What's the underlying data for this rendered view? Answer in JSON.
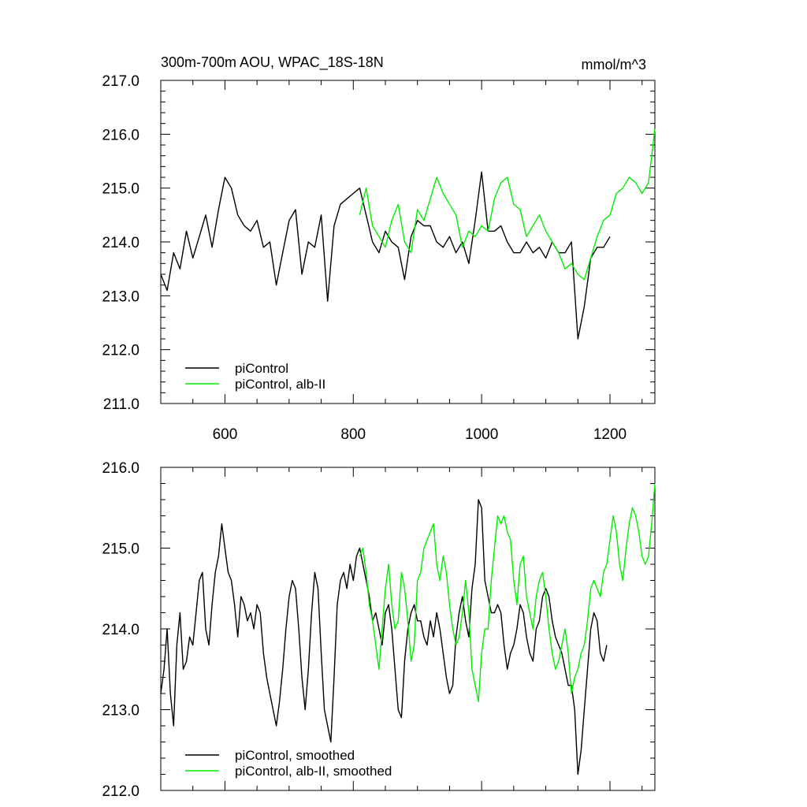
{
  "figure": {
    "title": "300m-700m AOU, WPAC_18S-18N",
    "units": "mmol/m^3"
  },
  "chart_data": [
    {
      "type": "line",
      "title": "300m-700m AOU, WPAC_18S-18N",
      "units": "mmol/m^3",
      "xlim": [
        500,
        1270
      ],
      "ylim": [
        211.0,
        217.0
      ],
      "xticks": [
        600,
        800,
        1000,
        1200
      ],
      "xtick_labels": [
        "600",
        "800",
        "1000",
        "1200"
      ],
      "yticks": [
        211.0,
        212.0,
        213.0,
        214.0,
        215.0,
        216.0,
        217.0
      ],
      "ytick_labels": [
        "211.0",
        "212.0",
        "213.0",
        "214.0",
        "215.0",
        "216.0",
        "217.0"
      ],
      "legend_position": "bottom-left",
      "series": [
        {
          "name": "piControl",
          "color": "#000000",
          "x": [
            500,
            510,
            520,
            530,
            540,
            550,
            560,
            570,
            580,
            590,
            600,
            610,
            620,
            630,
            640,
            650,
            660,
            670,
            680,
            690,
            700,
            710,
            720,
            730,
            740,
            750,
            760,
            770,
            780,
            790,
            800,
            810,
            820,
            830,
            840,
            850,
            860,
            870,
            880,
            890,
            900,
            910,
            920,
            930,
            940,
            950,
            960,
            970,
            980,
            990,
            1000,
            1010,
            1020,
            1030,
            1040,
            1050,
            1060,
            1070,
            1080,
            1090,
            1100,
            1110,
            1120,
            1130,
            1140,
            1150,
            1160,
            1170,
            1180,
            1190,
            1200
          ],
          "y": [
            213.4,
            213.1,
            213.8,
            213.5,
            214.2,
            213.7,
            214.1,
            214.5,
            213.9,
            214.6,
            215.2,
            215.0,
            214.5,
            214.3,
            214.2,
            214.4,
            213.9,
            214.0,
            213.2,
            213.8,
            214.4,
            214.6,
            213.4,
            214.0,
            213.9,
            214.5,
            212.9,
            214.3,
            214.7,
            214.8,
            214.9,
            215.0,
            214.5,
            214.0,
            213.8,
            214.2,
            214.0,
            213.9,
            213.3,
            214.1,
            214.4,
            214.3,
            214.3,
            214.0,
            213.9,
            214.1,
            213.8,
            214.0,
            213.6,
            214.4,
            215.3,
            214.2,
            214.2,
            214.3,
            214.0,
            213.8,
            213.8,
            214.0,
            213.8,
            213.9,
            213.7,
            214.0,
            213.8,
            213.8,
            214.0,
            212.2,
            212.8,
            213.7,
            213.9,
            213.9,
            214.1
          ]
        },
        {
          "name": "piControl, alb-II",
          "color": "#00ee00",
          "x": [
            810,
            820,
            830,
            840,
            850,
            860,
            870,
            880,
            890,
            900,
            910,
            920,
            930,
            940,
            950,
            960,
            970,
            980,
            990,
            1000,
            1010,
            1020,
            1030,
            1040,
            1050,
            1060,
            1070,
            1080,
            1090,
            1100,
            1110,
            1120,
            1130,
            1140,
            1150,
            1160,
            1170,
            1180,
            1190,
            1200,
            1210,
            1220,
            1230,
            1240,
            1250,
            1260,
            1270
          ],
          "y": [
            214.5,
            215.0,
            214.3,
            214.1,
            213.9,
            214.4,
            214.7,
            214.0,
            213.8,
            214.6,
            214.4,
            214.8,
            215.2,
            214.9,
            214.7,
            214.5,
            213.9,
            214.2,
            214.1,
            214.3,
            214.2,
            214.8,
            215.1,
            215.2,
            214.7,
            214.6,
            214.1,
            214.3,
            214.5,
            214.2,
            214.0,
            213.8,
            213.5,
            213.6,
            213.4,
            213.3,
            213.7,
            214.1,
            214.4,
            214.5,
            214.9,
            215.0,
            215.2,
            215.1,
            214.9,
            215.1,
            216.1
          ]
        }
      ]
    },
    {
      "type": "line",
      "xlim": [
        500,
        1270
      ],
      "ylim": [
        212.0,
        216.0
      ],
      "xticks": [
        600,
        800,
        1000,
        1200
      ],
      "xtick_labels": [],
      "yticks": [
        212.0,
        213.0,
        214.0,
        215.0,
        216.0
      ],
      "ytick_labels": [
        "212.0",
        "213.0",
        "214.0",
        "215.0",
        "216.0"
      ],
      "legend_position": "bottom-left",
      "series": [
        {
          "name": "piControl, smoothed",
          "color": "#000000",
          "x": [
            500,
            505,
            510,
            515,
            520,
            525,
            530,
            535,
            540,
            545,
            550,
            555,
            560,
            565,
            570,
            575,
            580,
            585,
            590,
            595,
            600,
            605,
            610,
            615,
            620,
            625,
            630,
            635,
            640,
            645,
            650,
            655,
            660,
            665,
            670,
            675,
            680,
            685,
            690,
            695,
            700,
            705,
            710,
            715,
            720,
            725,
            730,
            735,
            740,
            745,
            750,
            755,
            760,
            765,
            770,
            775,
            780,
            785,
            790,
            795,
            800,
            805,
            810,
            815,
            820,
            825,
            830,
            835,
            840,
            845,
            850,
            855,
            860,
            865,
            870,
            875,
            880,
            885,
            890,
            895,
            900,
            905,
            910,
            915,
            920,
            925,
            930,
            935,
            940,
            945,
            950,
            955,
            960,
            965,
            970,
            975,
            980,
            985,
            990,
            995,
            1000,
            1005,
            1010,
            1015,
            1020,
            1025,
            1030,
            1035,
            1040,
            1045,
            1050,
            1055,
            1060,
            1065,
            1070,
            1075,
            1080,
            1085,
            1090,
            1095,
            1100,
            1105,
            1110,
            1115,
            1120,
            1125,
            1130,
            1135,
            1140,
            1145,
            1150,
            1155,
            1160,
            1165,
            1170,
            1175,
            1180,
            1185,
            1190,
            1195
          ],
          "y": [
            213.2,
            213.5,
            214.0,
            213.2,
            212.8,
            213.8,
            214.2,
            213.5,
            213.6,
            213.9,
            213.8,
            214.2,
            214.6,
            214.7,
            214.0,
            213.8,
            214.3,
            214.7,
            214.9,
            215.3,
            215.0,
            214.7,
            214.6,
            214.3,
            213.9,
            214.4,
            214.3,
            214.1,
            214.2,
            214.0,
            214.3,
            214.2,
            213.7,
            213.4,
            213.2,
            213.0,
            212.8,
            213.1,
            213.5,
            214.0,
            214.4,
            214.6,
            214.5,
            214.0,
            213.4,
            213.0,
            213.5,
            214.2,
            214.7,
            214.5,
            213.7,
            213.0,
            212.8,
            212.6,
            213.4,
            214.3,
            214.6,
            214.7,
            214.5,
            214.8,
            214.6,
            214.9,
            215.0,
            214.8,
            214.6,
            214.4,
            214.1,
            214.2,
            214.0,
            213.8,
            214.2,
            214.3,
            214.0,
            213.5,
            213.0,
            212.9,
            213.6,
            214.0,
            214.2,
            214.3,
            214.1,
            214.1,
            213.9,
            213.8,
            214.1,
            213.9,
            214.2,
            214.0,
            213.7,
            213.4,
            213.2,
            213.3,
            213.9,
            214.2,
            214.4,
            214.1,
            213.9,
            214.5,
            214.8,
            215.6,
            215.5,
            214.6,
            214.4,
            214.2,
            214.2,
            214.3,
            214.2,
            213.8,
            213.5,
            213.7,
            213.8,
            214.0,
            214.3,
            214.2,
            213.9,
            213.7,
            213.6,
            214.0,
            214.1,
            214.4,
            214.5,
            214.4,
            214.1,
            213.9,
            213.8,
            213.7,
            213.5,
            213.3,
            213.3,
            213.0,
            212.2,
            212.5,
            213.0,
            213.5,
            214.0,
            214.2,
            214.1,
            213.7,
            213.6,
            213.8
          ]
        },
        {
          "name": "piControl, alb-II, smoothed",
          "color": "#00ee00",
          "x": [
            810,
            815,
            820,
            825,
            830,
            835,
            840,
            845,
            850,
            855,
            860,
            865,
            870,
            875,
            880,
            885,
            890,
            895,
            900,
            905,
            910,
            915,
            920,
            925,
            930,
            935,
            940,
            945,
            950,
            955,
            960,
            965,
            970,
            975,
            980,
            985,
            990,
            995,
            1000,
            1005,
            1010,
            1015,
            1020,
            1025,
            1030,
            1035,
            1040,
            1045,
            1050,
            1055,
            1060,
            1065,
            1070,
            1075,
            1080,
            1085,
            1090,
            1095,
            1100,
            1105,
            1110,
            1115,
            1120,
            1125,
            1130,
            1135,
            1140,
            1145,
            1150,
            1155,
            1160,
            1165,
            1170,
            1175,
            1180,
            1185,
            1190,
            1195,
            1200,
            1205,
            1210,
            1215,
            1220,
            1225,
            1230,
            1235,
            1240,
            1245,
            1250,
            1255,
            1260,
            1265,
            1270
          ],
          "y": [
            214.9,
            215.0,
            214.7,
            214.3,
            214.1,
            213.8,
            213.5,
            214.0,
            214.5,
            214.8,
            214.3,
            214.0,
            214.1,
            214.7,
            214.5,
            214.1,
            213.6,
            213.8,
            214.6,
            214.7,
            215.0,
            215.1,
            215.2,
            215.3,
            214.8,
            214.6,
            214.9,
            214.7,
            214.3,
            214.0,
            213.8,
            213.9,
            214.2,
            214.6,
            214.2,
            213.5,
            213.3,
            213.1,
            213.7,
            214.0,
            214.0,
            214.6,
            215.0,
            215.4,
            215.3,
            215.4,
            215.2,
            215.1,
            214.6,
            214.3,
            214.8,
            214.9,
            214.4,
            214.2,
            214.0,
            214.4,
            214.6,
            214.7,
            214.4,
            214.0,
            213.7,
            213.5,
            213.6,
            213.8,
            214.0,
            213.7,
            213.2,
            213.4,
            213.5,
            213.7,
            213.8,
            214.1,
            214.5,
            214.6,
            214.5,
            214.4,
            214.7,
            214.8,
            215.1,
            215.4,
            215.2,
            214.8,
            214.6,
            215.0,
            215.3,
            215.5,
            215.4,
            215.2,
            214.9,
            214.8,
            214.9,
            215.3,
            215.8
          ]
        }
      ]
    }
  ]
}
